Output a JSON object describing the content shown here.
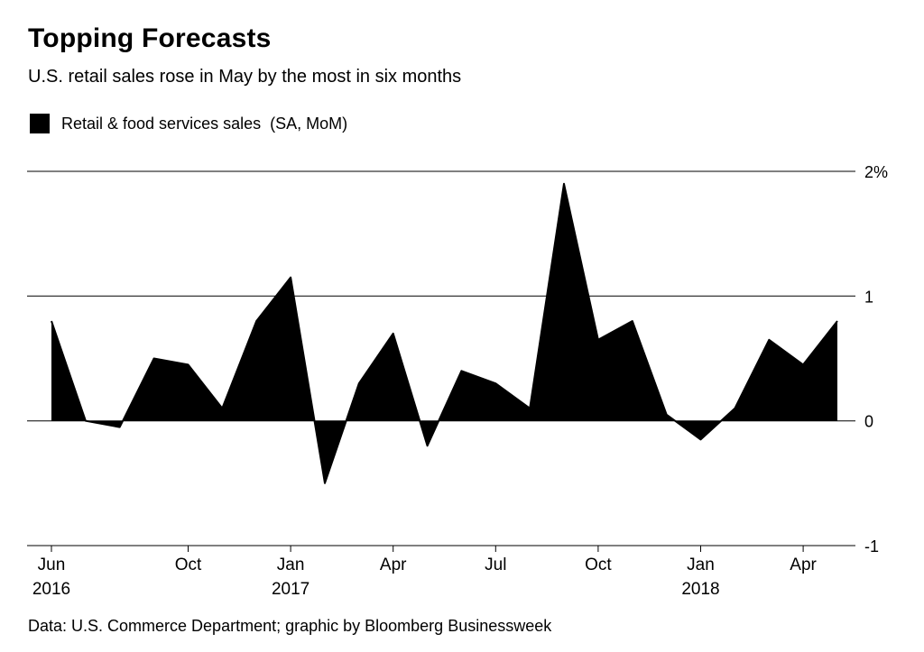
{
  "header": {
    "title": "Topping Forecasts",
    "subtitle": "U.S. retail sales rose in May by the most in six months"
  },
  "legend": {
    "swatch_color": "#000000",
    "label": "Retail & food services sales  (SA, MoM)"
  },
  "footer": {
    "source": "Data: U.S. Commerce Department; graphic by Bloomberg Businessweek"
  },
  "chart_data": {
    "type": "area",
    "title": "Topping Forecasts",
    "subtitle": "U.S. retail sales rose in May by the most in six months",
    "unit": "percent, month-over-month, seasonally adjusted",
    "x": [
      "Jun 2016",
      "Jul 2016",
      "Aug 2016",
      "Sep 2016",
      "Oct 2016",
      "Nov 2016",
      "Dec 2016",
      "Jan 2017",
      "Feb 2017",
      "Mar 2017",
      "Apr 2017",
      "May 2017",
      "Jun 2017",
      "Jul 2017",
      "Aug 2017",
      "Sep 2017",
      "Oct 2017",
      "Nov 2017",
      "Dec 2017",
      "Jan 2018",
      "Feb 2018",
      "Mar 2018",
      "Apr 2018",
      "May 2018"
    ],
    "series": [
      {
        "name": "Retail & food services sales (SA, MoM)",
        "values": [
          0.8,
          0.0,
          -0.05,
          0.5,
          0.45,
          0.1,
          0.8,
          1.15,
          -0.5,
          0.3,
          0.7,
          -0.2,
          0.4,
          0.3,
          0.1,
          1.9,
          0.65,
          0.8,
          0.05,
          -0.15,
          0.1,
          0.65,
          0.45,
          0.8
        ]
      }
    ],
    "ylim": [
      -1,
      2
    ],
    "yticks": [
      {
        "value": 2,
        "label": "2%"
      },
      {
        "value": 1,
        "label": "1"
      },
      {
        "value": 0,
        "label": "0"
      },
      {
        "value": -1,
        "label": "-1"
      }
    ],
    "xticks": [
      {
        "index": 0,
        "label": "Jun",
        "year": "2016"
      },
      {
        "index": 4,
        "label": "Oct"
      },
      {
        "index": 7,
        "label": "Jan",
        "year": "2017"
      },
      {
        "index": 10,
        "label": "Apr"
      },
      {
        "index": 13,
        "label": "Jul"
      },
      {
        "index": 16,
        "label": "Oct"
      },
      {
        "index": 19,
        "label": "Jan",
        "year": "2018"
      },
      {
        "index": 22,
        "label": "Apr"
      }
    ],
    "grid": "horizontal",
    "legend_position": "top-left",
    "fill_color": "#000000",
    "axis_color": "#000000",
    "background": "#ffffff"
  }
}
